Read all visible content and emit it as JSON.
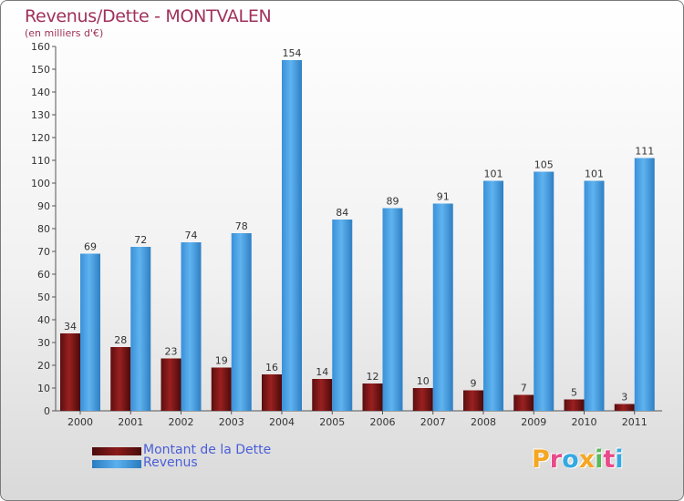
{
  "chart_data": {
    "type": "bar",
    "title": "Revenus/Dette - MONTVALEN",
    "subtitle": "(en milliers d'€)",
    "categories": [
      "2000",
      "2001",
      "2002",
      "2003",
      "2004",
      "2005",
      "2006",
      "2007",
      "2008",
      "2009",
      "2010",
      "2011"
    ],
    "series": [
      {
        "name": "Montant de la Dette",
        "color": "#8b1a1a",
        "values": [
          34,
          28,
          23,
          19,
          16,
          14,
          12,
          10,
          9,
          7,
          5,
          3
        ]
      },
      {
        "name": "Revenus",
        "color": "#4da3e6",
        "values": [
          69,
          72,
          74,
          78,
          154,
          84,
          89,
          91,
          101,
          105,
          101,
          111
        ]
      }
    ],
    "ylim": [
      0,
      160
    ],
    "yticks": [
      0,
      10,
      20,
      30,
      40,
      50,
      60,
      70,
      80,
      90,
      100,
      110,
      120,
      130,
      140,
      150,
      160
    ],
    "grid": false,
    "legend_position": "bottom-left"
  },
  "logo": {
    "text": "Proxiti",
    "colors": [
      "#f5a623",
      "#e84a8a",
      "#35a9e0",
      "#f5a623",
      "#5cb85c",
      "#e84a8a",
      "#35a9e0"
    ]
  }
}
